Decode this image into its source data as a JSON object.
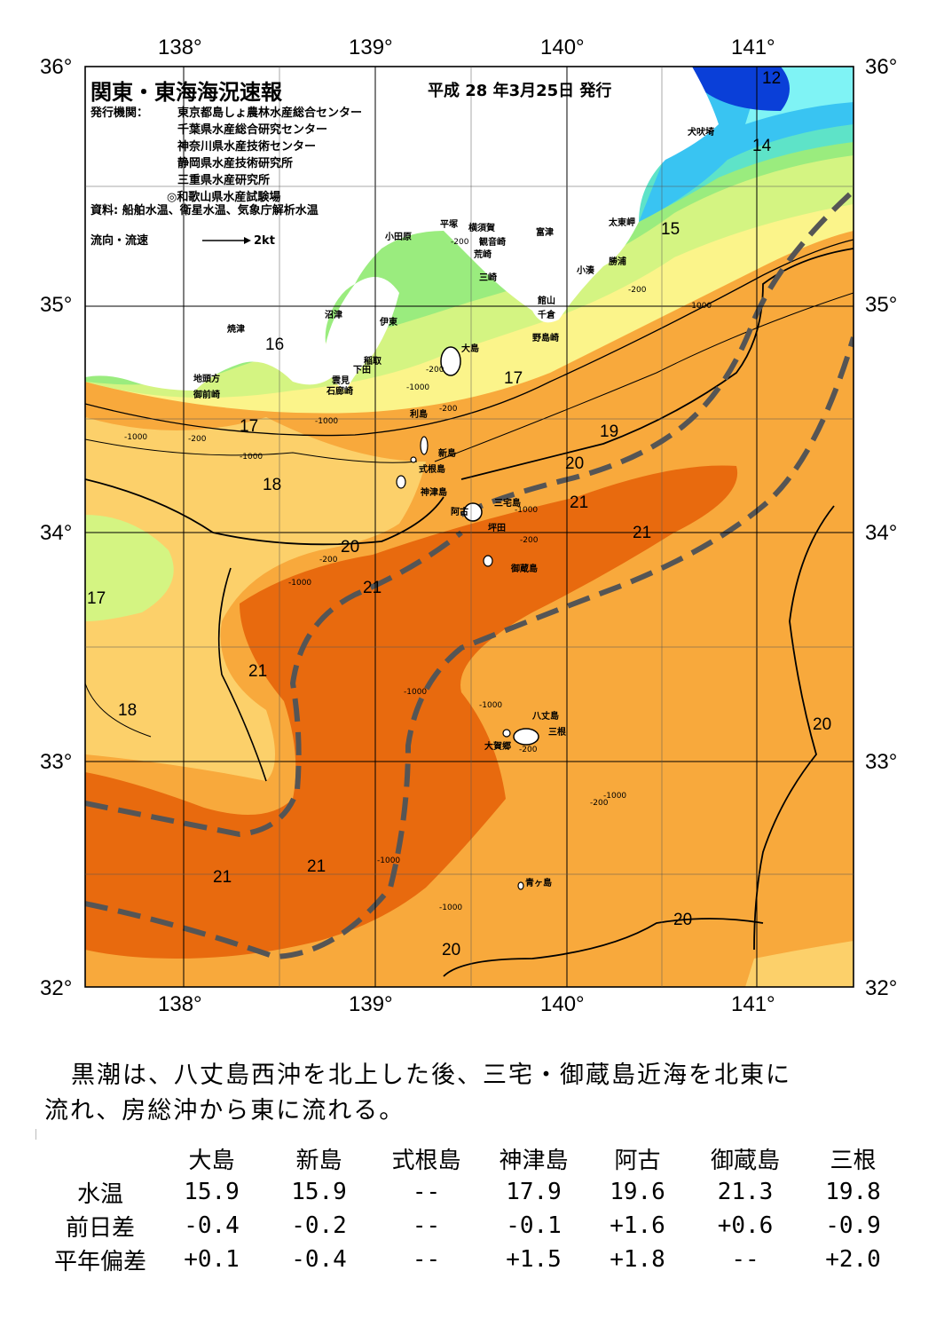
{
  "header": {
    "title": "関東・東海海況速報",
    "date": "平成 28 年3月25日 発行",
    "publisher_label": "発行機関：",
    "publishers": [
      "東京都島しょ農林水産総合センター",
      "千葉県水産総合研究センター",
      "神奈川県水産技術センター",
      "静岡県水産技術研究所",
      "三重県水産研究所",
      "◎和歌山県水産試験場"
    ],
    "sources": "資料: 船舶水温、衛星水温、気象庁解析水温",
    "legend_label": "流向・流速",
    "legend_scale": "2kt"
  },
  "axes": {
    "lon_top": [
      "138°",
      "139°",
      "140°",
      "141°"
    ],
    "lon_bottom": [
      "138°",
      "139°",
      "140°",
      "141°"
    ],
    "lat_left": [
      "36°",
      "35°",
      "34°",
      "33°",
      "32°"
    ],
    "lat_right": [
      "36°",
      "35°",
      "34°",
      "33°",
      "32°"
    ]
  },
  "map": {
    "isotherm_labels": [
      "12",
      "14",
      "15",
      "16",
      "17",
      "17",
      "17",
      "18",
      "18",
      "19",
      "20",
      "20",
      "20",
      "20",
      "21",
      "21",
      "21",
      "21",
      "21",
      "21",
      "20"
    ],
    "depth_labels": [
      "-200",
      "-200",
      "-1000",
      "-1000",
      "-200",
      "-1000",
      "-200",
      "-200",
      "-1000",
      "-1000",
      "-200",
      "-1000",
      "-1000",
      "-1000",
      "-1000",
      "-200",
      "-200",
      "-1000",
      "-1000",
      "-1000",
      "-200"
    ],
    "places": [
      "犬吠埼",
      "太東岬",
      "勝浦",
      "小湊",
      "富津",
      "観音崎",
      "横須賀",
      "平塚",
      "小田原",
      "荒崎",
      "三崎",
      "館山",
      "千倉",
      "野島崎",
      "沼津",
      "伊東",
      "焼津",
      "稲取",
      "下田",
      "雲見",
      "石廊崎",
      "地頭方",
      "御前崎",
      "大島",
      "利島",
      "新島",
      "式根島",
      "神津島",
      "阿古",
      "三宅島",
      "坪田",
      "御蔵島",
      "八丈島",
      "三根",
      "大賀郷",
      "青ヶ島"
    ],
    "colors": {
      "cold_deep": "#0a3fd8",
      "cold": "#39c4f2",
      "cyan": "#7ff3f5",
      "aqua": "#5ee3c8",
      "green": "#9aec7e",
      "lightgreen": "#d4f482",
      "yellow": "#fbf48a",
      "lightorange": "#fcd06a",
      "orange": "#f8a93c",
      "warm": "#f28c1c",
      "hot": "#e86a0e",
      "land": "#ffffff",
      "current": "#555555"
    }
  },
  "description": [
    "黒潮は、八丈島西沖を北上した後、三宅・御蔵島近海を北東に",
    "流れ、房総沖から東に流れる。"
  ],
  "table": {
    "columns": [
      "大島",
      "新島",
      "式根島",
      "神津島",
      "阿古",
      "御蔵島",
      "三根"
    ],
    "rows": [
      {
        "label": "水温",
        "values": [
          "15.9",
          "15.9",
          "--",
          "17.9",
          "19.6",
          "21.3",
          "19.8"
        ]
      },
      {
        "label": "前日差",
        "values": [
          "-0.4",
          "-0.2",
          "--",
          "-0.1",
          "+1.6",
          "+0.6",
          "-0.9"
        ]
      },
      {
        "label": "平年偏差",
        "values": [
          "+0.1",
          "-0.4",
          "--",
          "+1.5",
          "+1.8",
          "--",
          "+2.0"
        ]
      }
    ]
  }
}
